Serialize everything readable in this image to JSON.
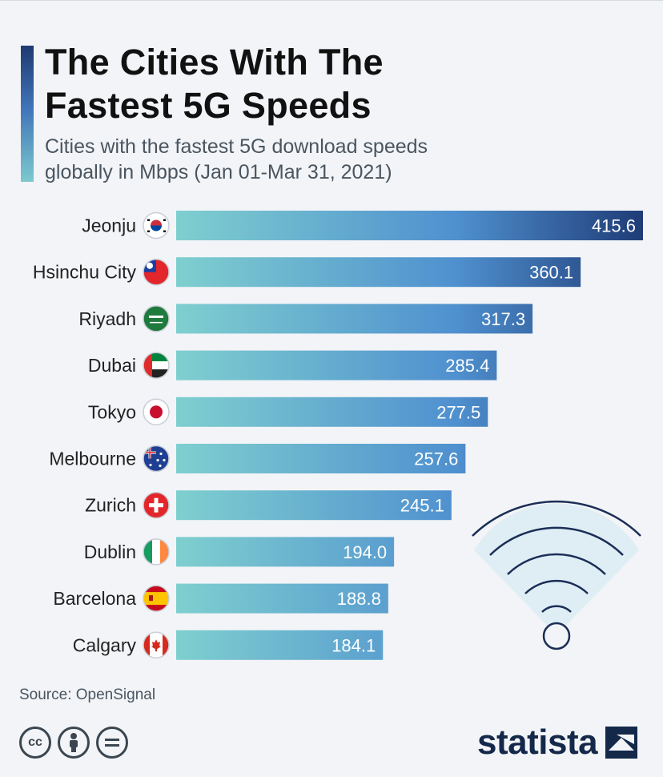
{
  "title_lines": [
    "The Cities With The",
    "Fastest 5G Speeds"
  ],
  "subtitle_lines": [
    "Cities with the fastest 5G download speeds",
    "globally in Mbps (Jan 01-Mar 31, 2021)"
  ],
  "source": "Source: OpenSignal",
  "brand": "statista",
  "colors": {
    "bar_start": "#7fcfcf",
    "bar_mid": "#4f90cf",
    "bar_end": "#1f3c77",
    "background": "#f2f4f7"
  },
  "license_icons": [
    "cc-icon",
    "person-icon",
    "equals-icon"
  ],
  "decoration_icon": "wifi-icon",
  "chart_data": {
    "type": "bar",
    "orientation": "horizontal",
    "title": "The Cities With The Fastest 5G Speeds",
    "subtitle": "Cities with the fastest 5G download speeds globally in Mbps (Jan 01-Mar 31, 2021)",
    "xlabel": "",
    "ylabel": "",
    "grid": false,
    "legend": "none",
    "categories": [
      "Jeonju",
      "Hsinchu City",
      "Riyadh",
      "Dubai",
      "Tokyo",
      "Melbourne",
      "Zurich",
      "Dublin",
      "Barcelona",
      "Calgary"
    ],
    "values": [
      415.6,
      360.1,
      317.3,
      285.4,
      277.5,
      257.6,
      245.1,
      194.0,
      188.8,
      184.1
    ],
    "value_labels": [
      "415.6",
      "360.1",
      "317.3",
      "285.4",
      "277.5",
      "257.6",
      "245.1",
      "194.0",
      "188.8",
      "184.1"
    ],
    "flags": [
      "south-korea-flag-icon",
      "taiwan-flag-icon",
      "saudi-arabia-flag-icon",
      "uae-flag-icon",
      "japan-flag-icon",
      "australia-flag-icon",
      "switzerland-flag-icon",
      "ireland-flag-icon",
      "spain-flag-icon",
      "canada-flag-icon"
    ],
    "xlim": [
      0,
      415.6
    ]
  }
}
